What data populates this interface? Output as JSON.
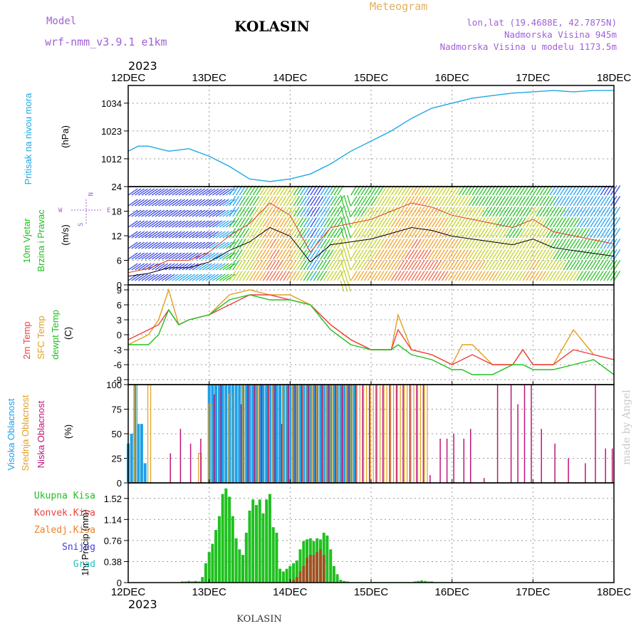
{
  "header": {
    "model_label": "Model",
    "model_name": "wrf-nmm_v3.9.1  e1km",
    "station": "KOLASIN",
    "meteogram_label": "Meteogram",
    "lonlat": "lon,lat (19.4688E, 42.7875N)",
    "elevation": "Nadmorska Visina 945m",
    "model_elevation": "Nadmorska Visina u modelu 1173.5m"
  },
  "footer": {
    "station": "KOLASIN",
    "watermark": "made by Angel"
  },
  "colors": {
    "pressure": "#1ea8e6",
    "wind_label": "#20c020",
    "temp2m": "#f04040",
    "sfc": "#e0a020",
    "dew": "#20c020",
    "high_cloud": "#1ea0e6",
    "mid_cloud": "#e0a020",
    "low_cloud": "#c0147a",
    "grid": "#888888"
  },
  "chart_data": [
    {
      "type": "line",
      "x_axis": {
        "year": "2023",
        "ticks": [
          "12DEC",
          "13DEC",
          "14DEC",
          "15DEC",
          "16DEC",
          "17DEC",
          "18DEC"
        ],
        "range_hours": [
          0,
          144
        ]
      },
      "series": [
        {
          "name": "Pritisak na nivou mora",
          "x": [
            0,
            3,
            6,
            12,
            18,
            24,
            30,
            36,
            42,
            48,
            54,
            60,
            66,
            72,
            78,
            84,
            90,
            96,
            102,
            108,
            114,
            120,
            126,
            132,
            138,
            144
          ],
          "values": [
            1015,
            1017,
            1017,
            1015,
            1016,
            1013,
            1009,
            1004,
            1003,
            1004,
            1006,
            1010,
            1015,
            1019,
            1023,
            1028,
            1032,
            1034,
            1036,
            1037,
            1038,
            1038.5,
            1039,
            1038.5,
            1039,
            1039
          ]
        }
      ],
      "ylabel": "(hPa)",
      "ytitle": "Pritisak na nivou mora",
      "yticks": [
        1012,
        1023,
        1034
      ],
      "ylim": [
        1001,
        1041
      ]
    },
    {
      "type": "line",
      "title": "10m Vjetar Brzina i Pravac",
      "ylabel": "(m/s)",
      "yticks": [
        0,
        6,
        12,
        18,
        24
      ],
      "ylim": [
        0,
        24
      ],
      "compass": [
        "N",
        "W",
        "E",
        "S"
      ],
      "series": [
        {
          "name": "10m Vjetar",
          "x": [
            0,
            6,
            12,
            18,
            24,
            30,
            36,
            42,
            48,
            54,
            60,
            66,
            72,
            78,
            84,
            90,
            96,
            102,
            108,
            114,
            120,
            126,
            132,
            138,
            144
          ],
          "values": [
            3,
            4,
            6,
            6,
            8,
            12,
            15,
            20,
            17,
            8,
            14,
            15,
            16,
            18,
            20,
            19,
            17,
            16,
            15,
            14,
            16,
            13,
            12,
            11,
            10
          ]
        }
      ]
    },
    {
      "type": "line",
      "ylabel": "(C)",
      "yticks": [
        -9,
        -6,
        -3,
        0,
        3,
        6,
        9
      ],
      "ylim": [
        -10,
        10
      ],
      "series": [
        {
          "name": "2m Temp",
          "x": [
            0,
            6,
            9,
            12,
            15,
            18,
            24,
            30,
            36,
            42,
            48,
            54,
            60,
            66,
            72,
            78,
            80,
            84,
            90,
            96,
            99,
            102,
            108,
            114,
            117,
            120,
            126,
            132,
            138,
            144
          ],
          "values": [
            -1,
            1,
            2,
            5,
            2,
            3,
            4,
            6,
            8,
            8,
            7,
            6,
            2,
            -1,
            -3,
            -3,
            1,
            -3,
            -4,
            -6,
            -5,
            -4,
            -6,
            -6,
            -3,
            -6,
            -6,
            -3,
            -4,
            -5
          ]
        },
        {
          "name": "SFC Temp",
          "x": [
            0,
            6,
            9,
            12,
            15,
            18,
            24,
            30,
            36,
            42,
            48,
            54,
            60,
            66,
            72,
            78,
            80,
            84,
            90,
            96,
            99,
            102,
            108,
            114,
            117,
            120,
            126,
            132,
            138,
            144
          ],
          "values": [
            -2,
            0,
            3,
            9,
            2,
            3,
            4,
            8,
            9,
            8,
            8,
            6,
            2,
            -1,
            -3,
            -3,
            4,
            -3,
            -4,
            -6,
            -2,
            -2,
            -6,
            -6,
            -3,
            -6,
            -6,
            1,
            -4,
            -5
          ]
        },
        {
          "name": "dewpt Temp",
          "x": [
            0,
            6,
            9,
            12,
            15,
            18,
            24,
            30,
            36,
            42,
            48,
            54,
            60,
            66,
            72,
            78,
            80,
            84,
            90,
            96,
            99,
            102,
            108,
            114,
            117,
            120,
            126,
            132,
            138,
            144
          ],
          "values": [
            -2,
            -2,
            0,
            5,
            2,
            3,
            4,
            7,
            8,
            7,
            7,
            6,
            1,
            -2,
            -3,
            -3,
            -2,
            -4,
            -5,
            -7,
            -7,
            -8,
            -8,
            -6,
            -6,
            -7,
            -7,
            -6,
            -5,
            -8
          ]
        }
      ]
    },
    {
      "type": "bar",
      "ylabel": "(%)",
      "yticks": [
        0,
        25,
        50,
        75,
        100
      ],
      "ylim": [
        0,
        100
      ],
      "series": [
        {
          "name": "Visoka Oblacnost",
          "x": [
            0,
            1,
            2,
            3,
            4,
            5,
            24,
            25,
            26,
            27,
            28,
            29,
            30,
            31,
            32,
            33,
            34,
            35,
            36,
            37,
            38,
            39,
            40,
            41,
            42,
            43,
            44,
            45,
            46,
            47,
            48,
            49,
            50,
            51,
            52,
            53,
            54,
            55,
            56,
            57,
            58,
            59,
            60,
            61,
            62,
            63,
            64,
            65,
            66,
            67
          ],
          "values": [
            40,
            50,
            100,
            60,
            60,
            20,
            100,
            100,
            100,
            100,
            100,
            100,
            100,
            100,
            100,
            100,
            100,
            100,
            100,
            100,
            100,
            100,
            100,
            100,
            100,
            100,
            100,
            100,
            100,
            100,
            100,
            100,
            100,
            100,
            100,
            100,
            100,
            100,
            100,
            100,
            100,
            100,
            100,
            100,
            100,
            100,
            100,
            100,
            100,
            100
          ]
        },
        {
          "name": "Srednja Oblacnost",
          "x": [
            2,
            6,
            21,
            24,
            30,
            34,
            38,
            42,
            46,
            48,
            50,
            52,
            54,
            56,
            58,
            60,
            62,
            64,
            66,
            68,
            70,
            72,
            74,
            76,
            78,
            80,
            82,
            84,
            86,
            88
          ],
          "values": [
            100,
            100,
            30,
            80,
            90,
            100,
            100,
            100,
            100,
            100,
            100,
            100,
            100,
            100,
            100,
            100,
            100,
            100,
            100,
            100,
            100,
            100,
            100,
            100,
            100,
            100,
            100,
            100,
            100,
            100
          ]
        },
        {
          "name": "Niska Oblacnost",
          "x": [
            12,
            15,
            18,
            21,
            25,
            27,
            33,
            35,
            37,
            39,
            41,
            43,
            45,
            47,
            49,
            51,
            53,
            55,
            57,
            59,
            61,
            63,
            65,
            67,
            69,
            71,
            73,
            75,
            77,
            79,
            81,
            83,
            85,
            87,
            89,
            92,
            94,
            96,
            99,
            101,
            105,
            109,
            113,
            115,
            117,
            119,
            122,
            126,
            130,
            135,
            138,
            141,
            143
          ],
          "values": [
            30,
            55,
            40,
            45,
            90,
            100,
            80,
            100,
            100,
            100,
            100,
            100,
            60,
            100,
            100,
            100,
            100,
            100,
            100,
            100,
            100,
            100,
            100,
            100,
            100,
            100,
            100,
            100,
            100,
            100,
            100,
            100,
            100,
            100,
            8,
            45,
            45,
            50,
            45,
            55,
            5,
            100,
            100,
            80,
            100,
            100,
            55,
            40,
            25,
            20,
            100,
            35,
            35
          ]
        }
      ]
    },
    {
      "type": "bar",
      "ylabel": "1hr Precip (mm)",
      "yticks": [
        0,
        0.38,
        0.76,
        1.14,
        1.52
      ],
      "ylim": [
        0,
        1.8
      ],
      "x_axis": {
        "year": "2023",
        "ticks": [
          "12DEC",
          "13DEC",
          "14DEC",
          "15DEC",
          "16DEC",
          "17DEC",
          "18DEC"
        ]
      },
      "series": [
        {
          "name": "Ukupna Kisa",
          "x": [
            16,
            17,
            18,
            19,
            20,
            21,
            22,
            23,
            24,
            25,
            26,
            27,
            28,
            29,
            30,
            31,
            32,
            33,
            34,
            35,
            36,
            37,
            38,
            39,
            40,
            41,
            42,
            43,
            44,
            45,
            46,
            47,
            48,
            49,
            50,
            51,
            52,
            53,
            54,
            55,
            56,
            57,
            58,
            59,
            60,
            61,
            62,
            63,
            64,
            65,
            66,
            67,
            68,
            69,
            70,
            71,
            72,
            73,
            74,
            75,
            76,
            77,
            78,
            79,
            80,
            81,
            82,
            83,
            84,
            85,
            86,
            87,
            88,
            89,
            90,
            91,
            92,
            93,
            94,
            95,
            96
          ],
          "values": [
            0.02,
            0.02,
            0.03,
            0.02,
            0.03,
            0.02,
            0.1,
            0.35,
            0.55,
            0.7,
            0.95,
            1.2,
            1.6,
            1.7,
            1.55,
            1.2,
            0.8,
            0.6,
            0.5,
            0.9,
            1.3,
            1.5,
            1.4,
            1.5,
            1.25,
            1.5,
            1.6,
            1.0,
            0.9,
            0.25,
            0.2,
            0.25,
            0.3,
            0.35,
            0.4,
            0.6,
            0.75,
            0.78,
            0.8,
            0.75,
            0.8,
            0.78,
            0.9,
            0.85,
            0.6,
            0.3,
            0.15,
            0.05,
            0.03,
            0.02,
            0.01,
            0.01,
            0.01,
            0.01,
            0.01,
            0.01,
            0.01,
            0.01,
            0.01,
            0.01,
            0.01,
            0.01,
            0.01,
            0.01,
            0.01,
            0.01,
            0.01,
            0.01,
            0.01,
            0.02,
            0.03,
            0.04,
            0.03,
            0.02,
            0.02,
            0.01,
            0.01,
            0.01,
            0.01,
            0.01,
            0.01
          ]
        },
        {
          "name": "Konvek.Kisa",
          "x": [
            49,
            50,
            51,
            52,
            53,
            54,
            55,
            56,
            57,
            58
          ],
          "values": [
            0.05,
            0.1,
            0.2,
            0.3,
            0.45,
            0.5,
            0.5,
            0.55,
            0.6,
            0.5
          ]
        },
        {
          "name": "Zaledj.Kisa",
          "x": [],
          "values": []
        },
        {
          "name": "Snijeg",
          "x": [],
          "values": []
        },
        {
          "name": "Grad",
          "x": [],
          "values": []
        }
      ]
    }
  ]
}
